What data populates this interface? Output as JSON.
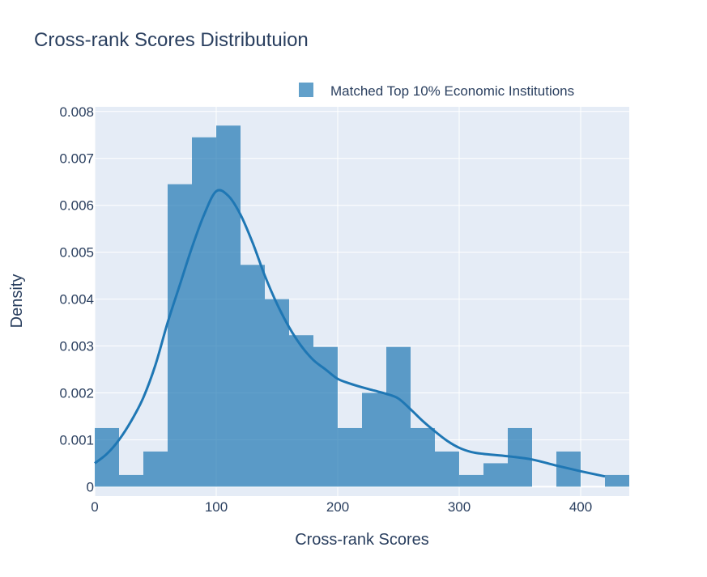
{
  "chart_data": {
    "type": "bar",
    "title": "Cross-rank Scores Distributuion",
    "xlabel": "Cross-rank Scores",
    "ylabel": "Density",
    "xlim": [
      0,
      440
    ],
    "ylim": [
      -0.0002,
      0.0081
    ],
    "grid": true,
    "legend_position": "top-right",
    "x_ticks": [
      0,
      100,
      200,
      300,
      400
    ],
    "x_tick_labels": [
      "0",
      "100",
      "200",
      "300",
      "400"
    ],
    "y_ticks": [
      0,
      0.001,
      0.002,
      0.003,
      0.004,
      0.005,
      0.006,
      0.007,
      0.008
    ],
    "y_tick_labels": [
      "0",
      "0.001",
      "0.002",
      "0.003",
      "0.004",
      "0.005",
      "0.006",
      "0.007",
      "0.008"
    ],
    "series": [
      {
        "name": "Matched Top 10% Economic Institutions",
        "kind": "histogram",
        "color": "#1f77b4",
        "bins": [
          {
            "x0": 0,
            "x1": 20,
            "y": 0.00125
          },
          {
            "x0": 20,
            "x1": 40,
            "y": 0.00025
          },
          {
            "x0": 40,
            "x1": 60,
            "y": 0.00075
          },
          {
            "x0": 60,
            "x1": 80,
            "y": 0.00645
          },
          {
            "x0": 80,
            "x1": 100,
            "y": 0.00745
          },
          {
            "x0": 100,
            "x1": 120,
            "y": 0.0077
          },
          {
            "x0": 120,
            "x1": 140,
            "y": 0.00473
          },
          {
            "x0": 140,
            "x1": 160,
            "y": 0.004
          },
          {
            "x0": 160,
            "x1": 180,
            "y": 0.00323
          },
          {
            "x0": 180,
            "x1": 200,
            "y": 0.00298
          },
          {
            "x0": 200,
            "x1": 220,
            "y": 0.00125
          },
          {
            "x0": 220,
            "x1": 240,
            "y": 0.002
          },
          {
            "x0": 240,
            "x1": 260,
            "y": 0.00298
          },
          {
            "x0": 260,
            "x1": 280,
            "y": 0.00125
          },
          {
            "x0": 280,
            "x1": 300,
            "y": 0.00075
          },
          {
            "x0": 300,
            "x1": 320,
            "y": 0.00025
          },
          {
            "x0": 320,
            "x1": 340,
            "y": 0.0005
          },
          {
            "x0": 340,
            "x1": 360,
            "y": 0.00125
          },
          {
            "x0": 360,
            "x1": 380,
            "y": 0
          },
          {
            "x0": 380,
            "x1": 400,
            "y": 0.00075
          },
          {
            "x0": 400,
            "x1": 420,
            "y": 0
          },
          {
            "x0": 420,
            "x1": 440,
            "y": 0.00025
          }
        ]
      },
      {
        "kind": "line",
        "color": "#1f77b4",
        "x": [
          0,
          10,
          20,
          30,
          40,
          50,
          60,
          70,
          80,
          90,
          100,
          110,
          120,
          130,
          140,
          150,
          160,
          170,
          180,
          190,
          200,
          210,
          220,
          230,
          240,
          250,
          260,
          270,
          280,
          290,
          300,
          310,
          320,
          340,
          360,
          380,
          400,
          420
        ],
        "y": [
          0.0005,
          0.0007,
          0.001,
          0.0014,
          0.0019,
          0.0026,
          0.0035,
          0.0043,
          0.0051,
          0.0058,
          0.0063,
          0.0062,
          0.0058,
          0.0052,
          0.0045,
          0.0039,
          0.0034,
          0.003,
          0.0027,
          0.0025,
          0.0023,
          0.0022,
          0.00212,
          0.00205,
          0.00198,
          0.00188,
          0.00165,
          0.0014,
          0.00118,
          0.00098,
          0.00083,
          0.00074,
          0.0007,
          0.00065,
          0.00058,
          0.00045,
          0.00033,
          0.00022
        ]
      }
    ]
  },
  "colors": {
    "plot_bg": "#e5ecf6",
    "grid": "#ffffff",
    "text": "#2a3f5f",
    "bar": "#1f77b4",
    "bar_opacity": 0.7
  }
}
